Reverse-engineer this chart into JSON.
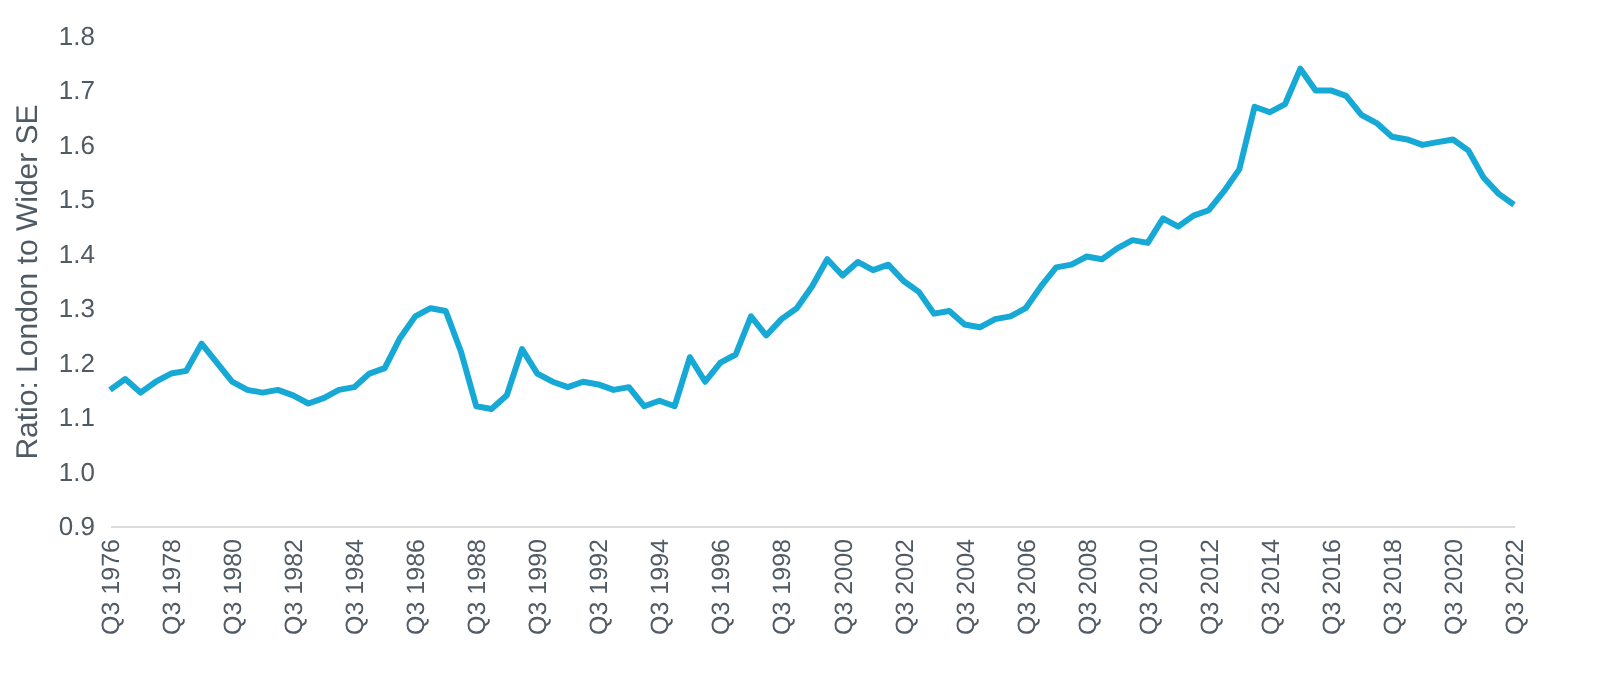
{
  "chart_data": {
    "type": "line",
    "ylabel": "Ratio: London to Wider SE",
    "categories": [
      "Q3 1976",
      null,
      null,
      null,
      "Q3 1978",
      null,
      null,
      null,
      "Q3 1980",
      null,
      null,
      null,
      "Q3 1982",
      null,
      null,
      null,
      "Q3 1984",
      null,
      null,
      null,
      "Q3 1986",
      null,
      null,
      null,
      "Q3 1988",
      null,
      null,
      null,
      "Q3 1990",
      null,
      null,
      null,
      "Q3 1992",
      null,
      null,
      null,
      "Q3 1994",
      null,
      null,
      null,
      "Q3 1996",
      null,
      null,
      null,
      "Q3 1998",
      null,
      null,
      null,
      "Q3 2000",
      null,
      null,
      null,
      "Q3 2002",
      null,
      null,
      null,
      "Q3 2004",
      null,
      null,
      null,
      "Q3 2006",
      null,
      null,
      null,
      "Q3 2008",
      null,
      null,
      null,
      "Q3 2010",
      null,
      null,
      null,
      "Q3 2012",
      null,
      null,
      null,
      "Q3 2014",
      null,
      null,
      null,
      "Q3 2016",
      null,
      null,
      null,
      "Q3 2018",
      null,
      null,
      null,
      "Q3 2020",
      null,
      null,
      null,
      "Q3 2022"
    ],
    "series": [
      {
        "color": "#17a9d6",
        "values": [
          1.15,
          1.17,
          1.145,
          1.165,
          1.18,
          1.185,
          1.235,
          1.2,
          1.165,
          1.15,
          1.145,
          1.15,
          1.14,
          1.125,
          1.135,
          1.15,
          1.155,
          1.18,
          1.19,
          1.245,
          1.285,
          1.3,
          1.295,
          1.22,
          1.12,
          1.115,
          1.14,
          1.225,
          1.18,
          1.165,
          1.155,
          1.165,
          1.16,
          1.15,
          1.155,
          1.12,
          1.13,
          1.12,
          1.21,
          1.165,
          1.2,
          1.215,
          1.285,
          1.25,
          1.28,
          1.3,
          1.34,
          1.39,
          1.36,
          1.385,
          1.37,
          1.38,
          1.35,
          1.33,
          1.29,
          1.295,
          1.27,
          1.265,
          1.28,
          1.285,
          1.3,
          1.34,
          1.375,
          1.38,
          1.395,
          1.39,
          1.41,
          1.425,
          1.42,
          1.465,
          1.45,
          1.47,
          1.48,
          1.515,
          1.555,
          1.67,
          1.66,
          1.675,
          1.74,
          1.7,
          1.7,
          1.69,
          1.655,
          1.64,
          1.615,
          1.61,
          1.6,
          1.605,
          1.61,
          1.59,
          1.54,
          1.51,
          1.49
        ]
      }
    ],
    "ylim": [
      0.9,
      1.8
    ],
    "yticks": [
      0.9,
      {
        "value": 1,
        "label": "1.0"
      },
      1.1,
      1.2,
      1.3,
      1.4,
      1.5,
      1.6,
      1.7,
      1.8
    ],
    "grid": false,
    "legend": false,
    "marker": "none",
    "line_style": "solid"
  }
}
